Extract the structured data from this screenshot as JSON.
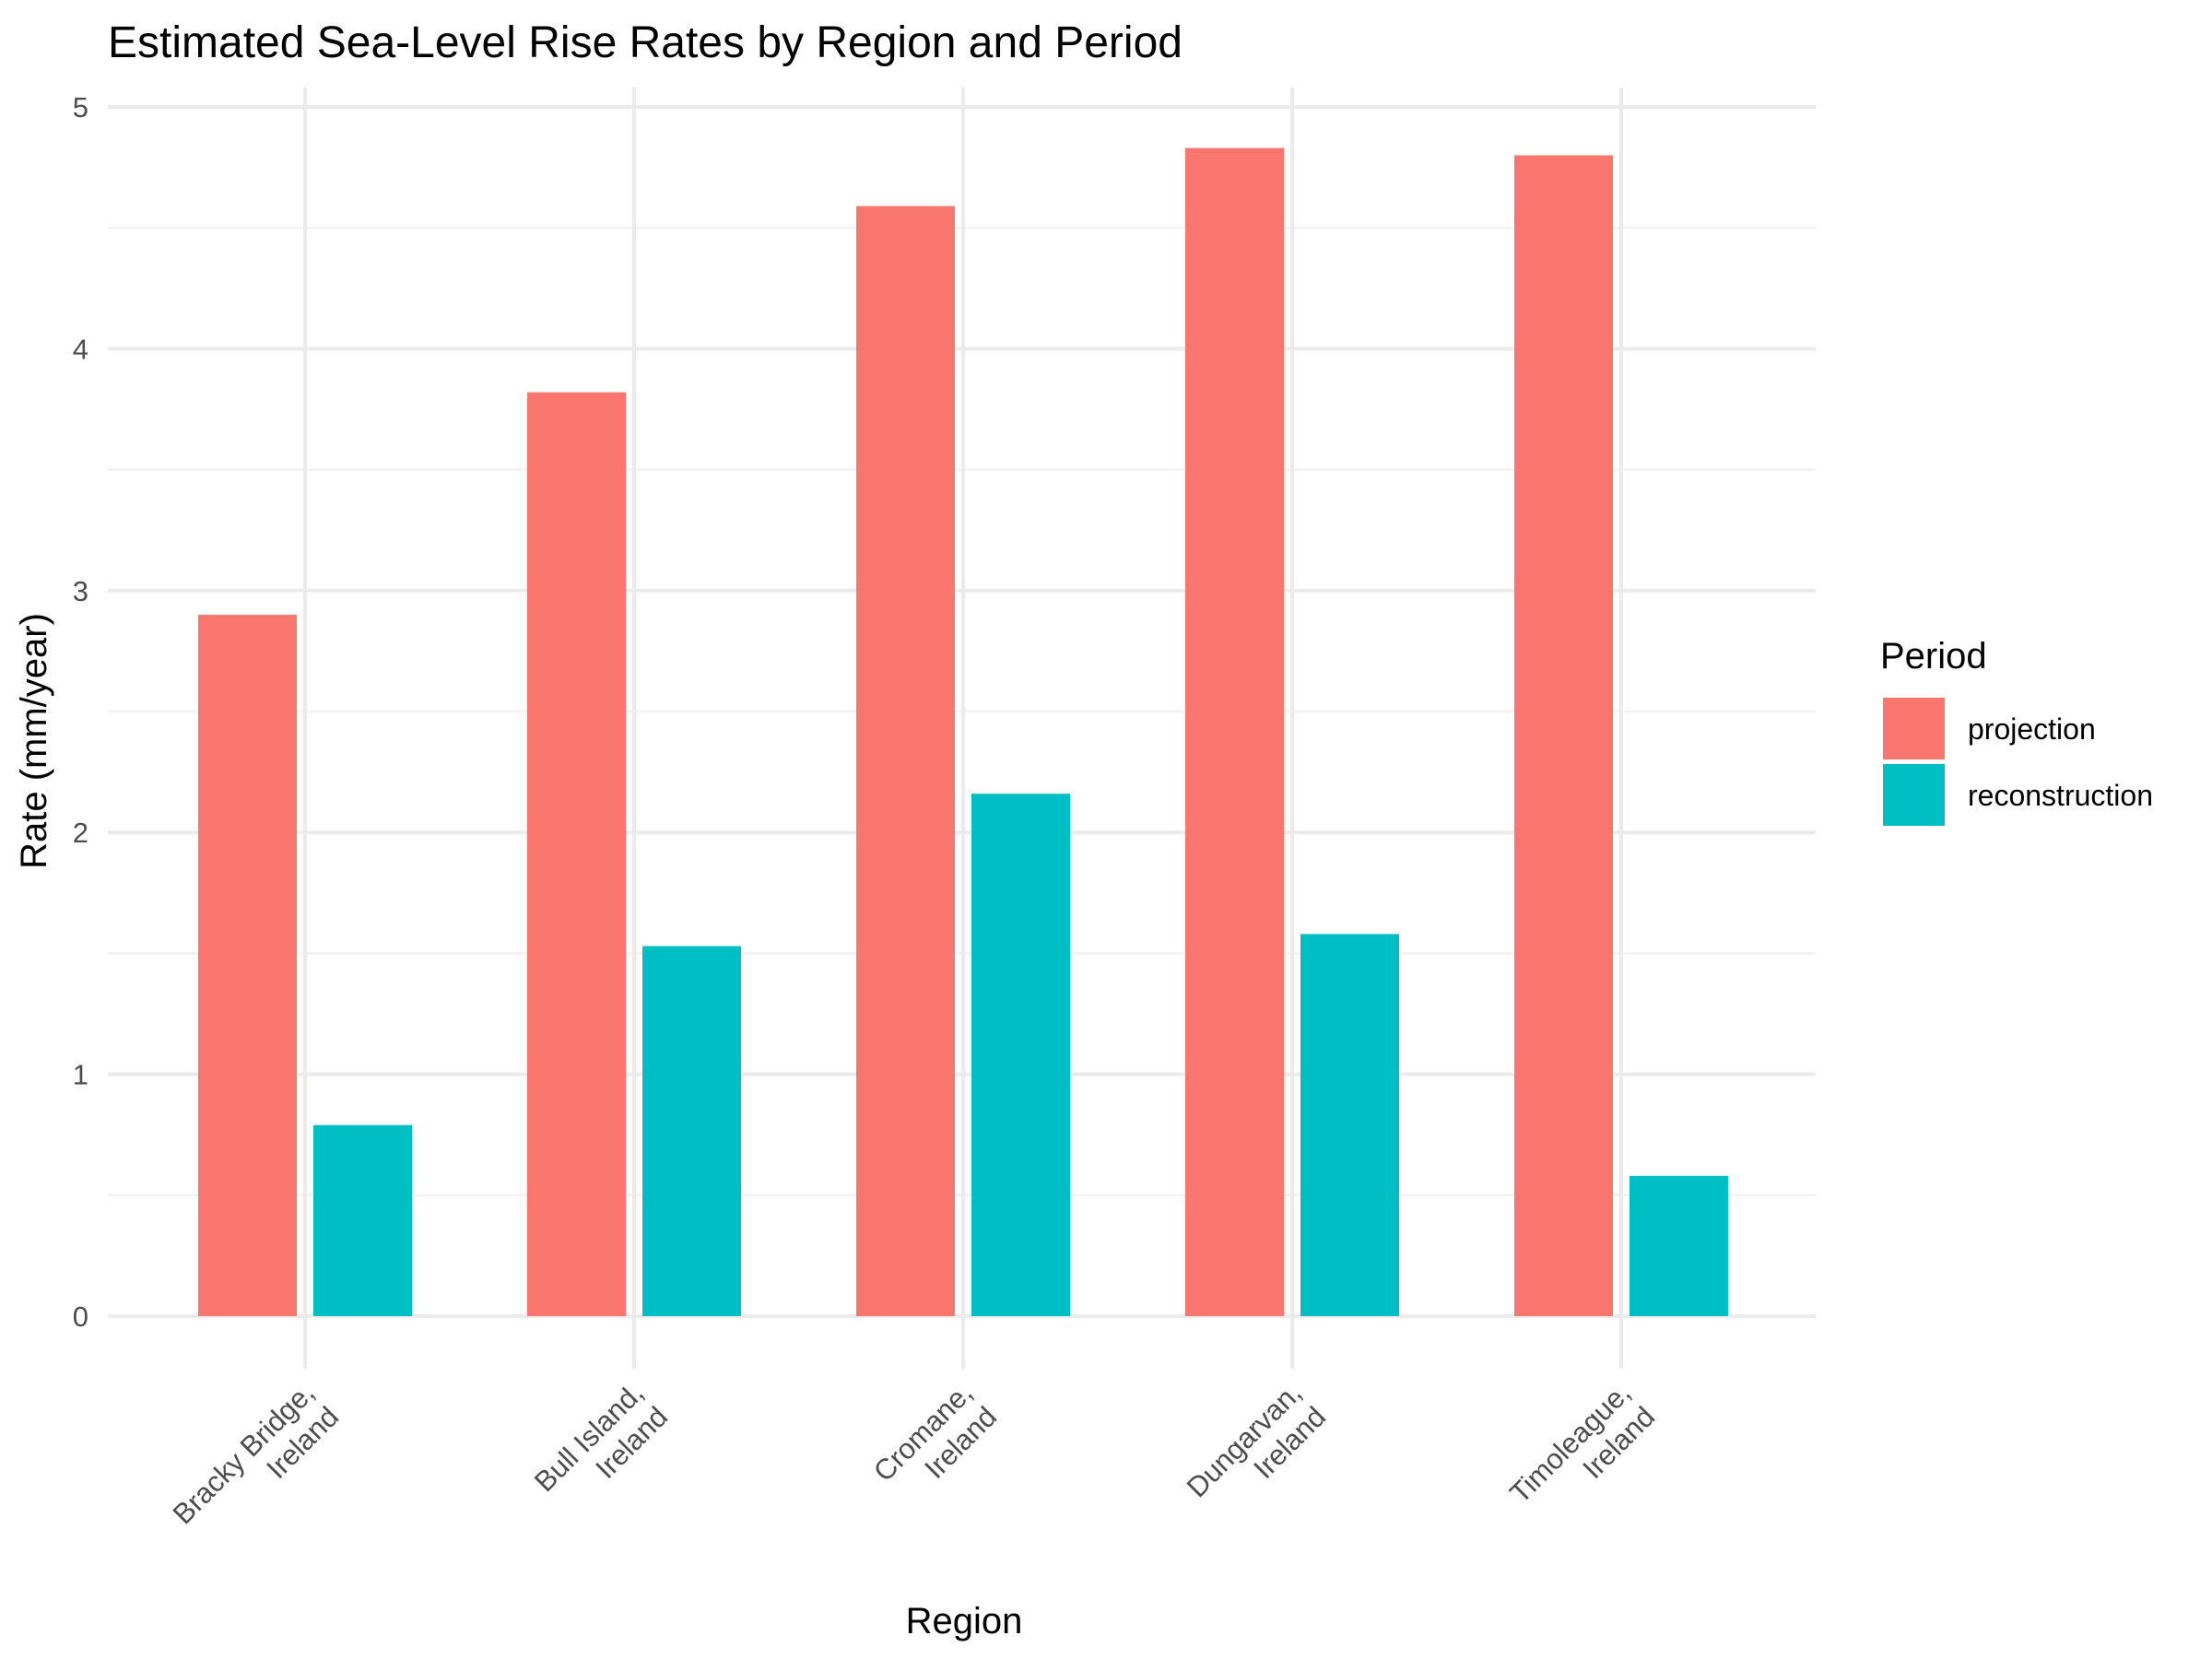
{
  "chart_data": {
    "type": "bar",
    "title": "Estimated Sea-Level Rise Rates by Region and Period",
    "xlabel": "Region",
    "ylabel": "Rate (mm/year)",
    "categories": [
      [
        "Bracky Bridge,",
        "Ireland"
      ],
      [
        "Bull Island,",
        "Ireland"
      ],
      [
        "Cromane,",
        "Ireland"
      ],
      [
        "Dungarvan,",
        "Ireland"
      ],
      [
        "Timoleague,",
        "Ireland"
      ]
    ],
    "series": [
      {
        "name": "projection",
        "color": "#F8766D",
        "values": [
          2.9,
          3.82,
          4.59,
          4.83,
          4.8
        ]
      },
      {
        "name": "reconstruction",
        "color": "#00BFC4",
        "values": [
          0.79,
          1.53,
          2.16,
          1.58,
          0.58
        ]
      }
    ],
    "ylim": [
      0,
      5
    ],
    "yticks": [
      0,
      1,
      2,
      3,
      4,
      5
    ],
    "grid": true,
    "legend": {
      "title": "Period",
      "position": "right"
    }
  }
}
